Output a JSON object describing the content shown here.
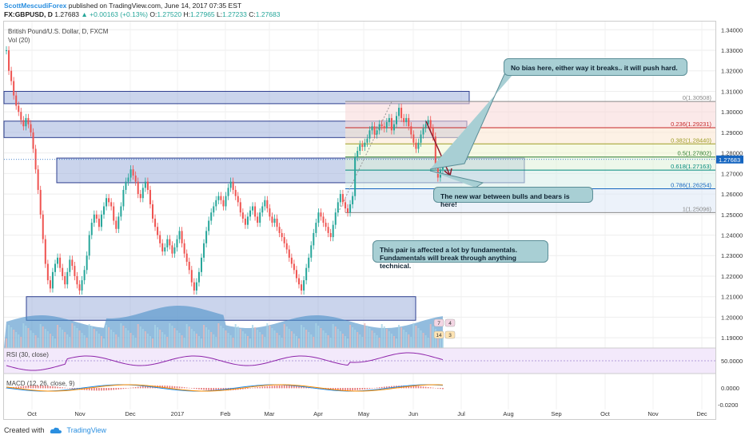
{
  "header": {
    "author": "ScottMescudiForex",
    "published": "published on TradingView.com, June 14, 2017 07:35 EST",
    "symbol": "FX:GBPUSD, D",
    "last": "1.27683",
    "change": "▲ +0.00163 (+0.13%)",
    "open_label": "O:",
    "open": "1.27520",
    "high_label": "H:",
    "high": "1.27965",
    "low_label": "L:",
    "low": "1.27233",
    "close_label": "C:",
    "close": "1.27683"
  },
  "legend": {
    "title": "British Pound/U.S. Dollar, D, FXCM",
    "volume": "Vol (20)",
    "rsi": "RSI (30, close)",
    "macd": "MACD (12, 26, close, 9)"
  },
  "notes": {
    "top": "No bias here, either way it breaks.. it will push hard.",
    "mid": "The new war between bulls and bears is here!",
    "fund": "This pair is affected a lot by fundamentals. Fundamentals will break through anything technical."
  },
  "footer": {
    "created": "Created with",
    "brand": "TradingView"
  },
  "colors": {
    "up": "#26a69a",
    "down": "#ef5350",
    "zone_fill": "#9fb0dc",
    "zone_stroke": "#2e3f8f",
    "arrow": "#8b1a2b",
    "price_box": "#1565c0"
  },
  "chart_data": {
    "type": "candlestick",
    "title": "British Pound/U.S. Dollar, D, FXCM",
    "x_ticks": [
      "Oct",
      "Nov",
      "Dec",
      "2017",
      "Feb",
      "Mar",
      "Apr",
      "May",
      "Jun",
      "Jul",
      "Aug",
      "Sep",
      "Oct",
      "Nov",
      "Dec"
    ],
    "y_ticks": [
      "1.34000",
      "1.33000",
      "1.32000",
      "1.31000",
      "1.30000",
      "1.29000",
      "1.28000",
      "1.27000",
      "1.26000",
      "1.25000",
      "1.24000",
      "1.23000",
      "1.22000",
      "1.21000",
      "1.20000",
      "1.19000"
    ],
    "ylim": [
      1.185,
      1.344
    ],
    "last_price": "1.27683",
    "fibonacci": [
      {
        "label": "0(1.30508)",
        "level": 1.30508,
        "color": "#888888"
      },
      {
        "label": "0.236(1.29231)",
        "level": 1.29231,
        "color": "#c62828"
      },
      {
        "label": "0.382(1.28440)",
        "level": 1.2844,
        "color": "#9e9d24"
      },
      {
        "label": "0.5(1.27802)",
        "level": 1.27802,
        "color": "#2e7d32"
      },
      {
        "label": "0.618(1.27163)",
        "level": 1.27163,
        "color": "#00897b"
      },
      {
        "label": "0.786(1.26254)",
        "level": 1.26254,
        "color": "#1565c0"
      },
      {
        "label": "1(1.25096)",
        "level": 1.25096,
        "color": "#888888"
      }
    ],
    "zones": [
      {
        "from": 1.304,
        "to": 1.31
      },
      {
        "from": 1.2875,
        "to": 1.2955
      },
      {
        "from": 1.2655,
        "to": 1.2775
      },
      {
        "from": 1.1985,
        "to": 1.21
      }
    ],
    "close": [
      1.33,
      1.32,
      1.315,
      1.308,
      1.303,
      1.3,
      1.296,
      1.293,
      1.297,
      1.294,
      1.29,
      1.282,
      1.272,
      1.262,
      1.25,
      1.238,
      1.226,
      1.218,
      1.214,
      1.222,
      1.226,
      1.229,
      1.224,
      1.22,
      1.216,
      1.222,
      1.228,
      1.225,
      1.22,
      1.216,
      1.213,
      1.218,
      1.223,
      1.23,
      1.24,
      1.246,
      1.25,
      1.248,
      1.244,
      1.25,
      1.254,
      1.258,
      1.256,
      1.254,
      1.247,
      1.243,
      1.249,
      1.254,
      1.262,
      1.266,
      1.268,
      1.272,
      1.269,
      1.266,
      1.26,
      1.258,
      1.263,
      1.266,
      1.262,
      1.255,
      1.248,
      1.244,
      1.24,
      1.236,
      1.232,
      1.234,
      1.238,
      1.235,
      1.231,
      1.234,
      1.238,
      1.242,
      1.236,
      1.231,
      1.227,
      1.223,
      1.217,
      1.213,
      1.217,
      1.222,
      1.229,
      1.236,
      1.242,
      1.247,
      1.251,
      1.254,
      1.257,
      1.259,
      1.257,
      1.254,
      1.259,
      1.263,
      1.266,
      1.262,
      1.259,
      1.256,
      1.251,
      1.248,
      1.245,
      1.249,
      1.252,
      1.254,
      1.249,
      1.246,
      1.251,
      1.254,
      1.257,
      1.253,
      1.249,
      1.246,
      1.248,
      1.244,
      1.241,
      1.239,
      1.236,
      1.233,
      1.229,
      1.226,
      1.223,
      1.219,
      1.216,
      1.213,
      1.218,
      1.224,
      1.229,
      1.235,
      1.241,
      1.246,
      1.251,
      1.249,
      1.246,
      1.244,
      1.241,
      1.239,
      1.245,
      1.251,
      1.256,
      1.26,
      1.256,
      1.253,
      1.251,
      1.255,
      1.259,
      1.278,
      1.281,
      1.284,
      1.283,
      1.285,
      1.287,
      1.291,
      1.293,
      1.289,
      1.291,
      1.294,
      1.293,
      1.292,
      1.295,
      1.297,
      1.291,
      1.294,
      1.298,
      1.302,
      1.297,
      1.295,
      1.297,
      1.293,
      1.289,
      1.285,
      1.282,
      1.285,
      1.289,
      1.292,
      1.294,
      1.296,
      1.292,
      1.288,
      1.274,
      1.268,
      1.272,
      1.277
    ]
  },
  "rsi": {
    "label": "RSI (30, close)",
    "tick": "50.0000"
  },
  "macd": {
    "label": "MACD (12, 26, close, 9)",
    "ticks": [
      "0.0000",
      "-0.0200"
    ]
  },
  "time_ticks": [
    "Oct",
    "Nov",
    "Dec",
    "2017",
    "Feb",
    "Mar",
    "Apr",
    "May",
    "Jun",
    "Jul",
    "Aug",
    "Sep",
    "Oct",
    "Nov",
    "Dec"
  ]
}
